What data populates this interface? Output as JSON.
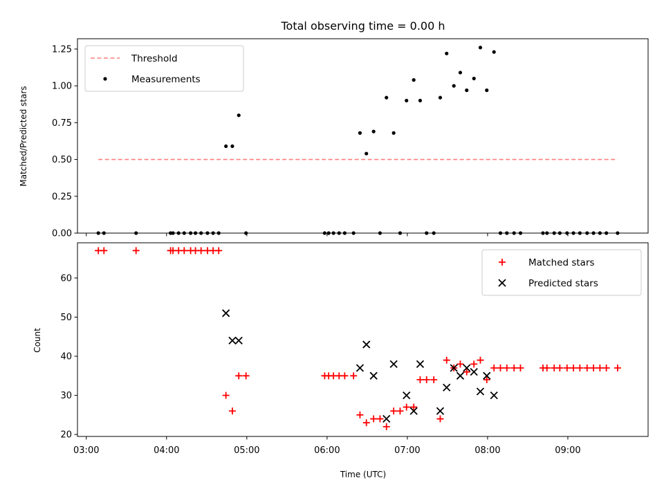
{
  "chart_data": [
    {
      "type": "scatter",
      "title": "Total observing time = 0.00 h",
      "xlabel": "",
      "ylabel": "Matched/Predicted stars",
      "xlim": [
        2.89,
        10.0
      ],
      "ylim": [
        0.0,
        1.32
      ],
      "x_ticks": [
        3,
        4,
        5,
        6,
        7,
        8,
        9
      ],
      "y_ticks": [
        0.0,
        0.25,
        0.5,
        0.75,
        1.0,
        1.25
      ],
      "y_tick_labels": [
        "0.00",
        "0.25",
        "0.50",
        "0.75",
        "1.00",
        "1.25"
      ],
      "legend_position": "top-left",
      "threshold": {
        "name": "Threshold",
        "y": 0.5,
        "x_range": [
          3.15,
          9.62
        ],
        "color": "#ff7f7f"
      },
      "series": [
        {
          "name": "Measurements",
          "marker": "dot",
          "color": "#000000",
          "x": [
            3.15,
            3.22,
            3.62,
            4.05,
            4.08,
            4.15,
            4.22,
            4.3,
            4.36,
            4.43,
            4.51,
            4.58,
            4.65,
            4.74,
            4.82,
            4.9,
            4.99,
            5.97,
            6.02,
            6.08,
            6.15,
            6.22,
            6.33,
            6.41,
            6.49,
            6.58,
            6.66,
            6.74,
            6.83,
            6.91,
            6.99,
            7.08,
            7.16,
            7.24,
            7.33,
            7.41,
            7.49,
            7.58,
            7.66,
            7.74,
            7.83,
            7.91,
            7.99,
            8.08,
            8.16,
            8.24,
            8.33,
            8.41,
            8.69,
            8.74,
            8.83,
            8.9,
            8.99,
            9.07,
            9.15,
            9.24,
            9.32,
            9.4,
            9.48,
            9.62
          ],
          "y": [
            0,
            0,
            0,
            0,
            0,
            0,
            0,
            0,
            0,
            0,
            0,
            0,
            0,
            0.59,
            0.59,
            0.8,
            0,
            0,
            0,
            0,
            0,
            0,
            0,
            0.68,
            0.54,
            0.69,
            0,
            0.92,
            0.68,
            0,
            0.9,
            1.04,
            0.9,
            0,
            0,
            0.92,
            1.22,
            1.0,
            1.09,
            0.97,
            1.05,
            1.26,
            0.97,
            1.23,
            0,
            0,
            0,
            0,
            0,
            0,
            0,
            0,
            0,
            0,
            0,
            0,
            0,
            0,
            0,
            0
          ]
        }
      ]
    },
    {
      "type": "scatter",
      "title": "",
      "xlabel": "Time (UTC)",
      "ylabel": "Count",
      "xlim": [
        2.89,
        10.0
      ],
      "ylim": [
        19.5,
        69.0
      ],
      "x_ticks": [
        3,
        4,
        5,
        6,
        7,
        8,
        9
      ],
      "x_tick_labels": [
        "03:00",
        "04:00",
        "05:00",
        "06:00",
        "07:00",
        "08:00",
        "09:00"
      ],
      "y_ticks": [
        20,
        30,
        40,
        50,
        60
      ],
      "legend_position": "top-right",
      "series": [
        {
          "name": "Matched stars",
          "marker": "plus",
          "color": "#ff0000",
          "x": [
            3.15,
            3.22,
            3.62,
            4.05,
            4.08,
            4.15,
            4.22,
            4.3,
            4.36,
            4.43,
            4.51,
            4.58,
            4.65,
            4.74,
            4.82,
            4.9,
            4.99,
            5.97,
            6.02,
            6.08,
            6.15,
            6.22,
            6.33,
            6.41,
            6.49,
            6.58,
            6.66,
            6.74,
            6.83,
            6.91,
            6.99,
            7.08,
            7.16,
            7.24,
            7.33,
            7.41,
            7.49,
            7.58,
            7.66,
            7.74,
            7.83,
            7.91,
            7.99,
            8.08,
            8.16,
            8.24,
            8.33,
            8.41,
            8.69,
            8.74,
            8.83,
            8.9,
            8.99,
            9.07,
            9.15,
            9.24,
            9.32,
            9.4,
            9.48,
            9.62
          ],
          "y": [
            67,
            67,
            67,
            67,
            67,
            67,
            67,
            67,
            67,
            67,
            67,
            67,
            67,
            30,
            26,
            35,
            35,
            35,
            35,
            35,
            35,
            35,
            35,
            25,
            23,
            24,
            24,
            22,
            26,
            26,
            27,
            27,
            34,
            34,
            34,
            24,
            39,
            37,
            38,
            36,
            38,
            39,
            34,
            37,
            37,
            37,
            37,
            37,
            37,
            37,
            37,
            37,
            37,
            37,
            37,
            37,
            37,
            37,
            37,
            37
          ]
        },
        {
          "name": "Predicted stars",
          "marker": "x",
          "color": "#000000",
          "x": [
            4.74,
            4.82,
            4.9,
            6.41,
            6.49,
            6.58,
            6.74,
            6.83,
            6.99,
            7.08,
            7.16,
            7.41,
            7.49,
            7.58,
            7.66,
            7.74,
            7.83,
            7.91,
            7.99,
            8.08
          ],
          "y": [
            51,
            44,
            44,
            37,
            43,
            35,
            24,
            38,
            30,
            26,
            38,
            26,
            32,
            37,
            35,
            37,
            36,
            31,
            35,
            30
          ]
        }
      ]
    }
  ]
}
